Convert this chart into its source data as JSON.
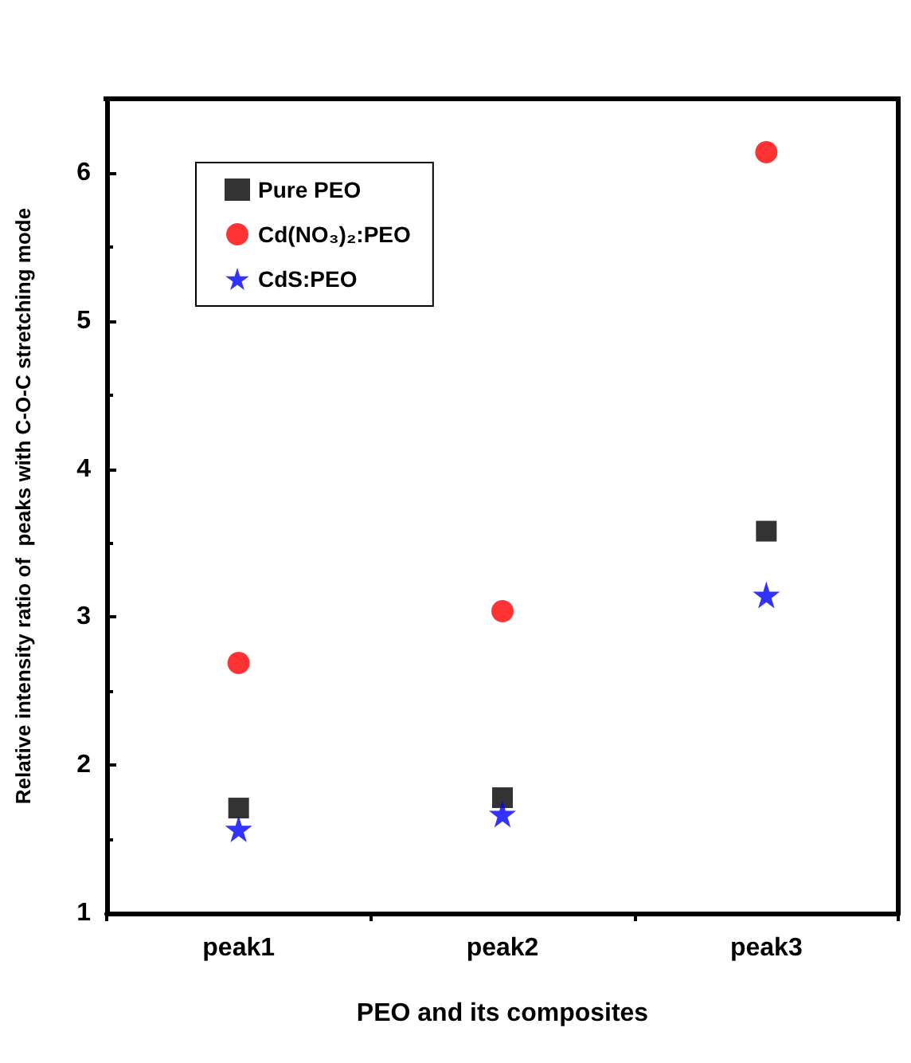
{
  "chart_data": {
    "type": "scatter",
    "xlabel": "PEO and its composites",
    "ylabel": "Relative intensity ratio of  peaks with C-O-C stretching mode",
    "categories": [
      "peak1",
      "peak2",
      "peak3"
    ],
    "series": [
      {
        "name": "Pure PEO",
        "color": "#000000",
        "marker": "square",
        "values": [
          1.71,
          1.78,
          3.58
        ]
      },
      {
        "name": "Cd(NO₃)₂:PEO",
        "color": "#ff0000",
        "marker": "circle",
        "values": [
          2.69,
          3.04,
          6.14
        ]
      },
      {
        "name": "CdS:PEO",
        "color": "#0000ff",
        "marker": "star",
        "values": [
          1.57,
          1.67,
          3.15
        ]
      }
    ],
    "ylim": [
      1,
      6.5
    ],
    "yticks": [
      1,
      2,
      3,
      4,
      5,
      6
    ],
    "grid": false,
    "legend": "top left"
  }
}
